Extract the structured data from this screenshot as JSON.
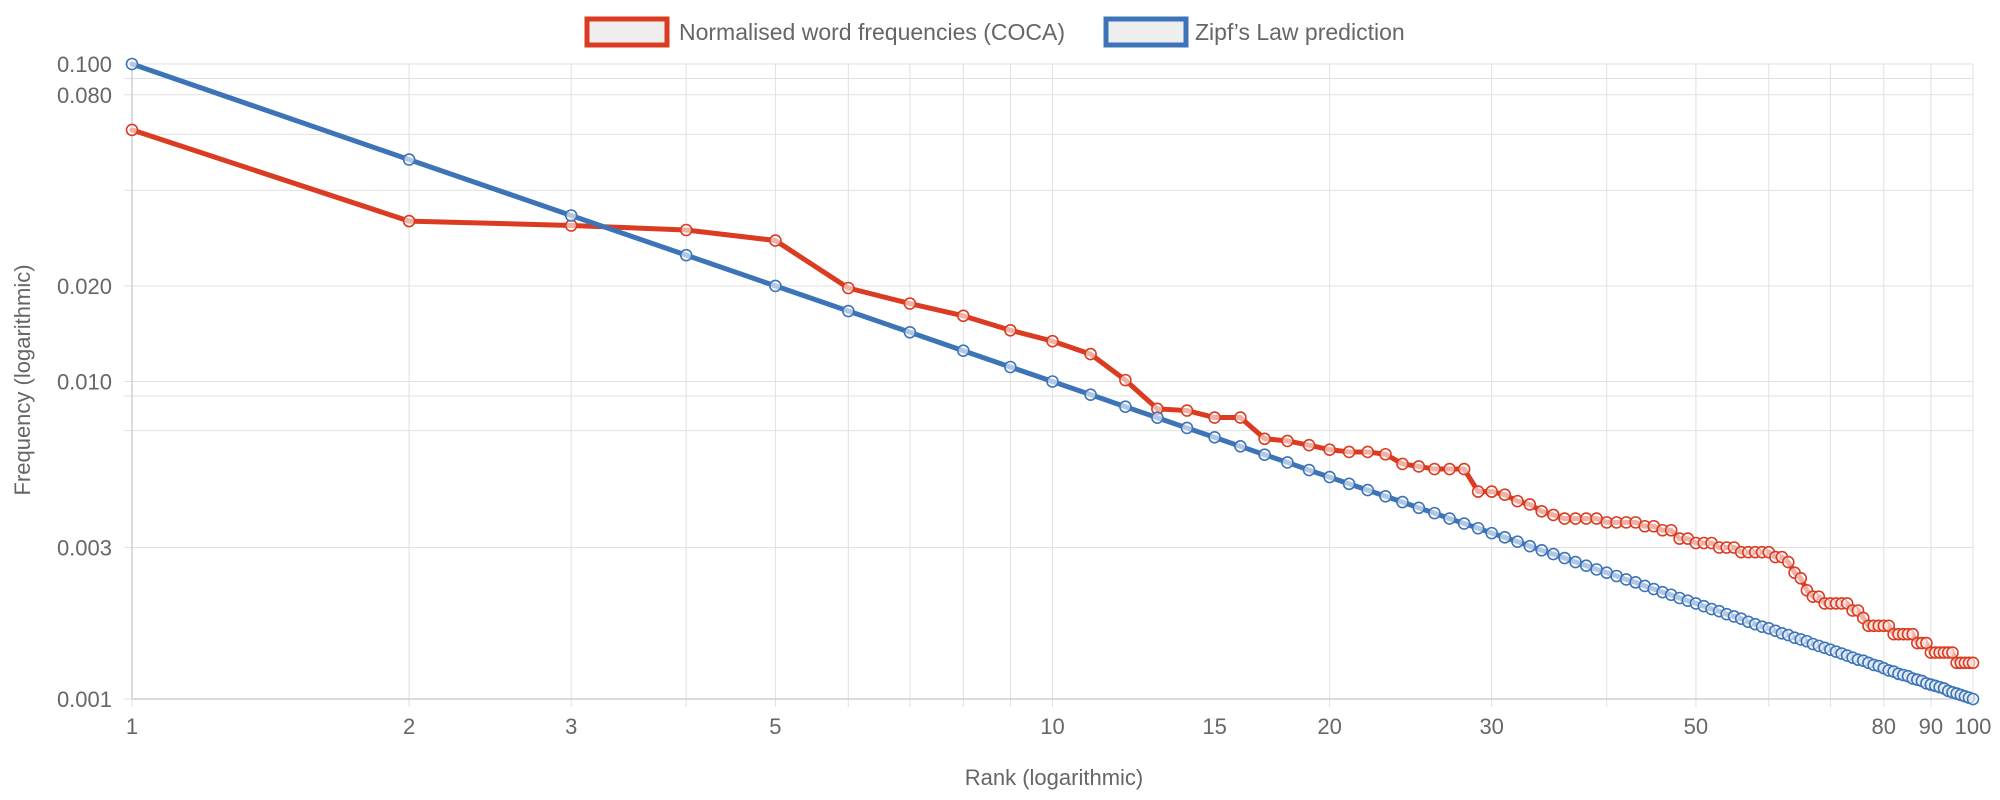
{
  "chart_data": {
    "type": "line",
    "title": "",
    "xlabel": "Rank (logarithmic)",
    "ylabel": "Frequency (logarithmic)",
    "x_scale": "log",
    "y_scale": "log",
    "xlim": [
      1,
      100
    ],
    "ylim": [
      0.001,
      0.1
    ],
    "x_tick_labels": [
      "1",
      "2",
      "3",
      "5",
      "10",
      "15",
      "20",
      "30",
      "50",
      "80",
      "90",
      "100"
    ],
    "y_tick_labels": [
      "0.100",
      "0.080",
      "0.020",
      "0.010",
      "0.003",
      "0.001"
    ],
    "grid": true,
    "legend_position": "top",
    "x": [
      1,
      2,
      3,
      4,
      5,
      6,
      7,
      8,
      9,
      10,
      11,
      12,
      13,
      14,
      15,
      16,
      17,
      18,
      19,
      20,
      21,
      22,
      23,
      24,
      25,
      26,
      27,
      28,
      29,
      30,
      31,
      32,
      33,
      34,
      35,
      36,
      37,
      38,
      39,
      40,
      41,
      42,
      43,
      44,
      45,
      46,
      47,
      48,
      49,
      50,
      51,
      52,
      53,
      54,
      55,
      56,
      57,
      58,
      59,
      60,
      61,
      62,
      63,
      64,
      65,
      66,
      67,
      68,
      69,
      70,
      71,
      72,
      73,
      74,
      75,
      76,
      77,
      78,
      79,
      80,
      81,
      82,
      83,
      84,
      85,
      86,
      87,
      88,
      89,
      90,
      91,
      92,
      93,
      94,
      95,
      96,
      97,
      98,
      99,
      100
    ],
    "series": [
      {
        "name": "Normalised word frequencies (COCA)",
        "color": "#db3b21",
        "values": [
          0.062,
          0.032,
          0.031,
          0.03,
          0.0278,
          0.0197,
          0.0176,
          0.0161,
          0.0145,
          0.0134,
          0.0122,
          0.0101,
          0.0082,
          0.0081,
          0.0077,
          0.0077,
          0.0066,
          0.0065,
          0.0063,
          0.0061,
          0.006,
          0.006,
          0.0059,
          0.0055,
          0.0054,
          0.0053,
          0.0053,
          0.0053,
          0.0045,
          0.0045,
          0.0044,
          0.0042,
          0.0041,
          0.0039,
          0.0038,
          0.0037,
          0.0037,
          0.0037,
          0.0037,
          0.0036,
          0.0036,
          0.0036,
          0.0036,
          0.0035,
          0.0035,
          0.0034,
          0.0034,
          0.0032,
          0.0032,
          0.0031,
          0.0031,
          0.0031,
          0.003,
          0.003,
          0.003,
          0.0029,
          0.0029,
          0.0029,
          0.0029,
          0.0029,
          0.0028,
          0.0028,
          0.0027,
          0.0025,
          0.0024,
          0.0022,
          0.0021,
          0.0021,
          0.002,
          0.002,
          0.002,
          0.002,
          0.002,
          0.0019,
          0.0019,
          0.0018,
          0.0017,
          0.0017,
          0.0017,
          0.0017,
          0.0017,
          0.0016,
          0.0016,
          0.0016,
          0.0016,
          0.0016,
          0.0015,
          0.0015,
          0.0015,
          0.0014,
          0.0014,
          0.0014,
          0.0014,
          0.0014,
          0.0014,
          0.0013,
          0.0013,
          0.0013,
          0.0013,
          0.0013
        ]
      },
      {
        "name": "Zipf’s Law prediction",
        "color": "#3d74b8",
        "values": [
          0.1,
          0.05,
          0.03333,
          0.025,
          0.02,
          0.01667,
          0.01429,
          0.0125,
          0.01111,
          0.01,
          0.00909,
          0.00833,
          0.00769,
          0.00714,
          0.00667,
          0.00625,
          0.00588,
          0.00556,
          0.00526,
          0.005,
          0.00476,
          0.00455,
          0.00435,
          0.00417,
          0.004,
          0.00385,
          0.0037,
          0.00357,
          0.00345,
          0.00333,
          0.00323,
          0.00313,
          0.00303,
          0.00294,
          0.00286,
          0.00278,
          0.0027,
          0.00263,
          0.00256,
          0.0025,
          0.00244,
          0.00238,
          0.00233,
          0.00227,
          0.00222,
          0.00217,
          0.00213,
          0.00208,
          0.00204,
          0.002,
          0.00196,
          0.00192,
          0.00189,
          0.00185,
          0.00182,
          0.00179,
          0.00175,
          0.00172,
          0.00169,
          0.00167,
          0.00164,
          0.00161,
          0.00159,
          0.00156,
          0.00154,
          0.00152,
          0.00149,
          0.00147,
          0.00145,
          0.00143,
          0.00141,
          0.00139,
          0.00137,
          0.00135,
          0.00133,
          0.00132,
          0.0013,
          0.00128,
          0.00127,
          0.00125,
          0.00123,
          0.00122,
          0.0012,
          0.00119,
          0.00118,
          0.00116,
          0.00115,
          0.00114,
          0.00112,
          0.00111,
          0.0011,
          0.00109,
          0.00108,
          0.00106,
          0.00105,
          0.00104,
          0.00103,
          0.00102,
          0.00101,
          0.001
        ]
      }
    ]
  }
}
